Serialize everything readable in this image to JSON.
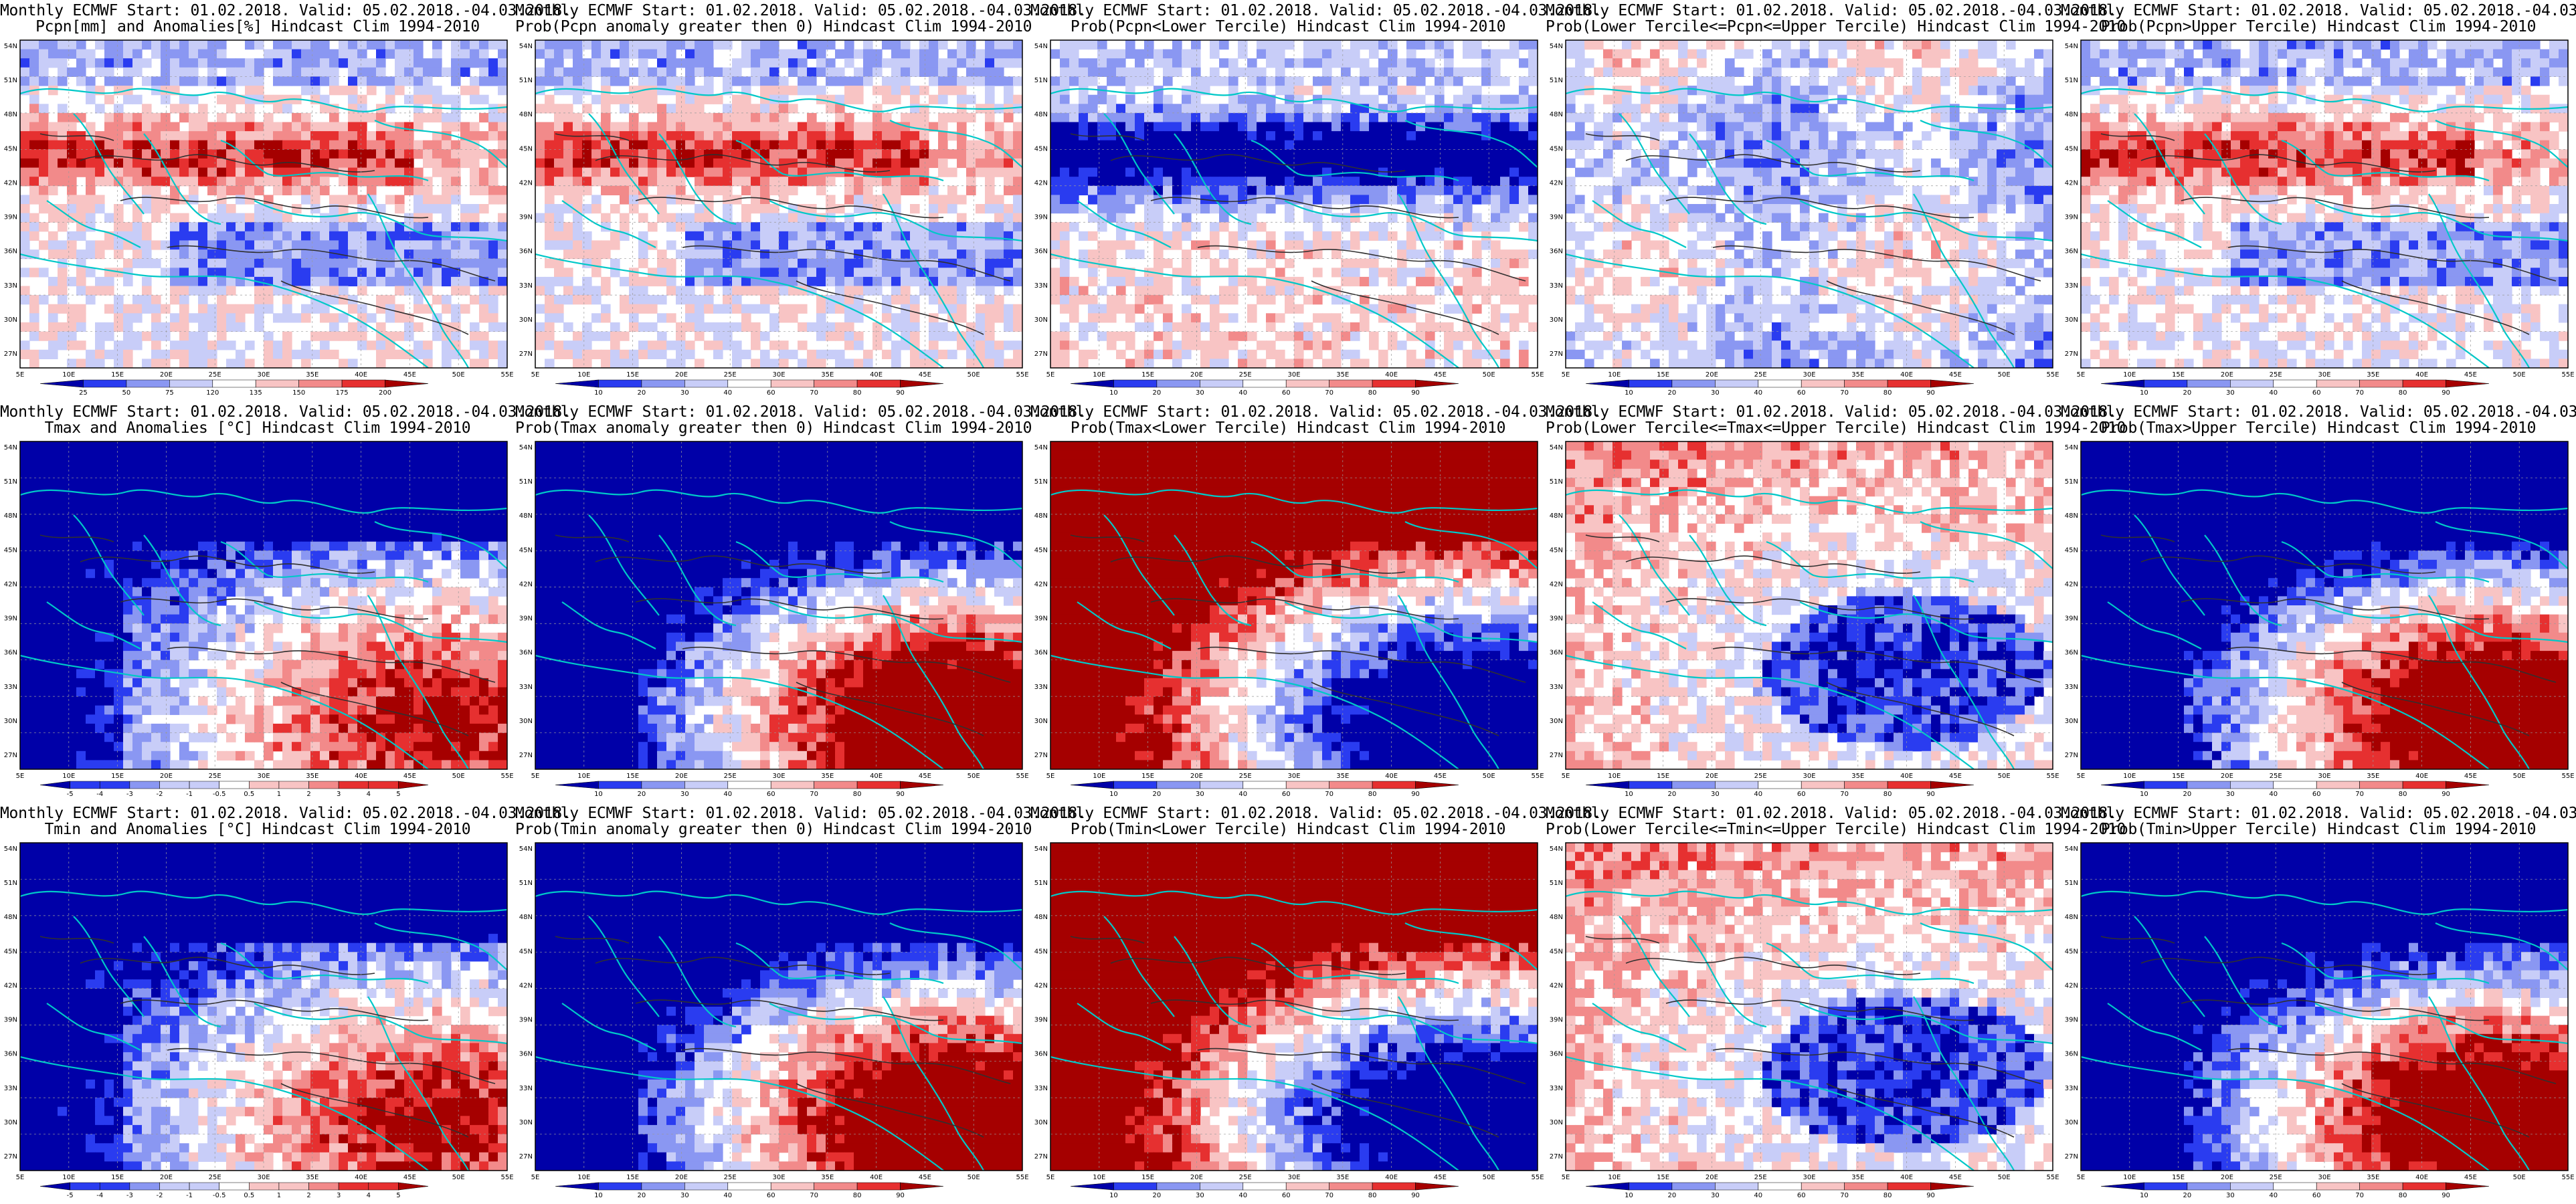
{
  "title_line1": "Monthly ECMWF Start: 01.02.2018. Valid: 05.02.2018.-04.03.2018.",
  "lat_ticks": [
    "54N",
    "51N",
    "48N",
    "45N",
    "42N",
    "39N",
    "36N",
    "33N",
    "30N",
    "27N"
  ],
  "lon_ticks": [
    "5E",
    "10E",
    "15E",
    "20E",
    "25E",
    "30E",
    "35E",
    "40E",
    "45E",
    "50E",
    "55E"
  ],
  "colorbars": {
    "precip_anom": [
      "25",
      "50",
      "75",
      "120",
      "135",
      "150",
      "175",
      "200"
    ],
    "temp_anom": [
      "-5",
      "-4",
      "-3",
      "-2",
      "-1",
      "-0.5",
      "0.5",
      "1",
      "2",
      "3",
      "4",
      "5"
    ],
    "prob": [
      "10",
      "20",
      "30",
      "40",
      "60",
      "70",
      "80",
      "90"
    ]
  },
  "colors": {
    "blue_dark": "#0000a8",
    "blue_mid": "#2a3cf0",
    "blue_light": "#8a97f2",
    "blue_pale": "#c8cdf8",
    "white": "#ffffff",
    "red_pale": "#f8c4c4",
    "red_light": "#f28a8a",
    "red_mid": "#e63030",
    "red_dark": "#a50000",
    "coast": "#00c8c8",
    "contour": "#303030"
  },
  "panels": [
    {
      "title2": "Pcpn[mm] and Anomalies[%] Hindcast Clim 1994-2010",
      "cbar": "precip_anom",
      "pattern": "precip"
    },
    {
      "title2": "Prob(Pcpn anomaly greater then 0) Hindcast Clim 1994-2010",
      "cbar": "prob",
      "pattern": "precip"
    },
    {
      "title2": "Prob(Pcpn<Lower Tercile) Hindcast Clim 1994-2010",
      "cbar": "prob",
      "pattern": "precip_low"
    },
    {
      "title2": "Prob(Lower Tercile<=Pcpn<=Upper Tercile) Hindcast Clim 1994-2010",
      "cbar": "prob",
      "pattern": "noise"
    },
    {
      "title2": "Prob(Pcpn>Upper Tercile) Hindcast Clim 1994-2010",
      "cbar": "prob",
      "pattern": "precip"
    },
    {
      "title2": "Tmax and Anomalies [°C] Hindcast Clim 1994-2010",
      "cbar": "temp_anom",
      "pattern": "warm"
    },
    {
      "title2": "Prob(Tmax anomaly greater then 0) Hindcast Clim 1994-2010",
      "cbar": "prob",
      "pattern": "warm_strong"
    },
    {
      "title2": "Prob(Tmax<Lower Tercile) Hindcast Clim 1994-2010",
      "cbar": "prob",
      "pattern": "cold_strong"
    },
    {
      "title2": "Prob(Lower Tercile<=Tmax<=Upper Tercile) Hindcast Clim 1994-2010",
      "cbar": "prob",
      "pattern": "middle"
    },
    {
      "title2": "Prob(Tmax>Upper Tercile) Hindcast Clim 1994-2010",
      "cbar": "prob",
      "pattern": "warm_strong"
    },
    {
      "title2": "Tmin and Anomalies [°C] Hindcast Clim 1994-2010",
      "cbar": "temp_anom",
      "pattern": "warm"
    },
    {
      "title2": "Prob(Tmin anomaly greater then 0) Hindcast Clim 1994-2010",
      "cbar": "prob",
      "pattern": "warm_strong"
    },
    {
      "title2": "Prob(Tmin<Lower Tercile) Hindcast Clim 1994-2010",
      "cbar": "prob",
      "pattern": "cold_strong"
    },
    {
      "title2": "Prob(Lower Tercile<=Tmin<=Upper Tercile) Hindcast Clim 1994-2010",
      "cbar": "prob",
      "pattern": "middle"
    },
    {
      "title2": "Prob(Tmin>Upper Tercile) Hindcast Clim 1994-2010",
      "cbar": "prob",
      "pattern": "warm_strong"
    }
  ]
}
